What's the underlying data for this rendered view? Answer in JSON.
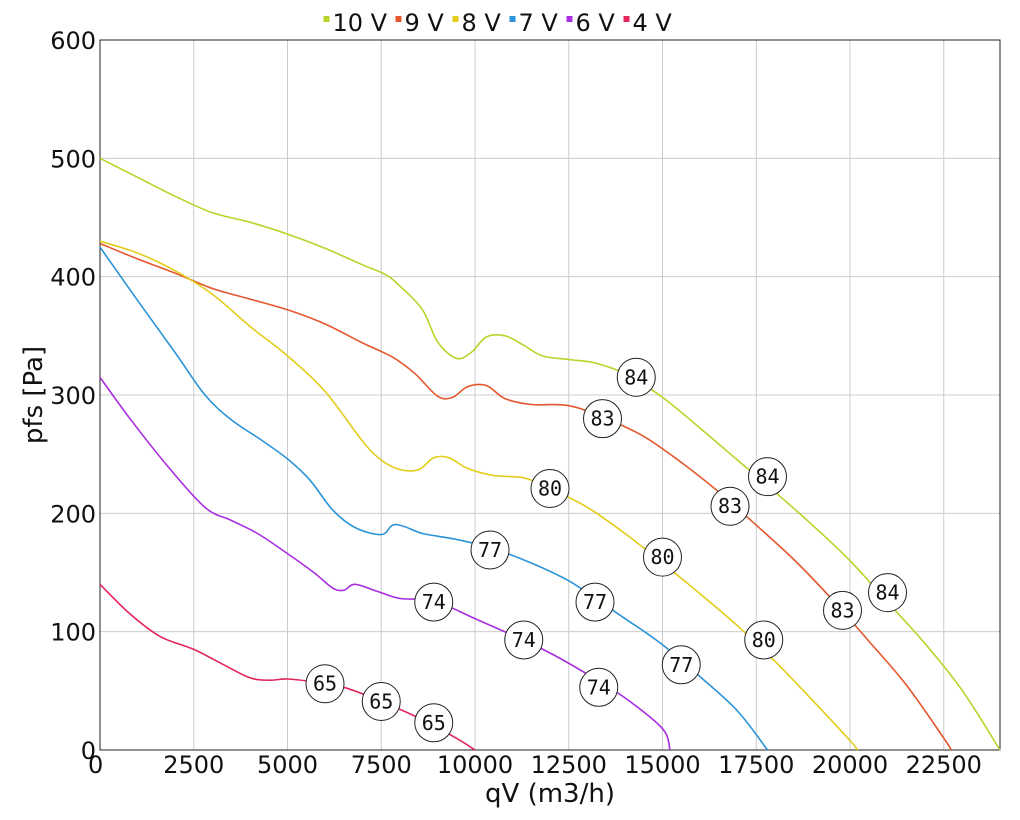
{
  "chart_data": {
    "type": "line",
    "xlabel": "qV (m3/h)",
    "ylabel": "pfs [Pa]",
    "xlim": [
      0,
      24000
    ],
    "ylim": [
      0,
      600
    ],
    "x_ticks": [
      0,
      2500,
      5000,
      7500,
      10000,
      12500,
      15000,
      17500,
      20000,
      22500
    ],
    "y_ticks": [
      0,
      100,
      200,
      300,
      400,
      500,
      600
    ],
    "grid": true,
    "legend_position": "top",
    "series": [
      {
        "name": "10 V",
        "color": "#b6d529",
        "points": [
          [
            0,
            500
          ],
          [
            1000,
            484
          ],
          [
            2000,
            468
          ],
          [
            3000,
            454
          ],
          [
            4000,
            446
          ],
          [
            5000,
            436
          ],
          [
            6000,
            424
          ],
          [
            7000,
            410
          ],
          [
            7600,
            402
          ],
          [
            8000,
            392
          ],
          [
            8600,
            372
          ],
          [
            9000,
            345
          ],
          [
            9500,
            331
          ],
          [
            9900,
            336
          ],
          [
            10300,
            349
          ],
          [
            10800,
            350
          ],
          [
            11300,
            342
          ],
          [
            11800,
            333
          ],
          [
            12500,
            330
          ],
          [
            13200,
            327
          ],
          [
            14000,
            318
          ],
          [
            15000,
            298
          ],
          [
            16000,
            272
          ],
          [
            17000,
            245
          ],
          [
            18000,
            218
          ],
          [
            19000,
            190
          ],
          [
            20000,
            160
          ],
          [
            21000,
            125
          ],
          [
            22000,
            90
          ],
          [
            23000,
            50
          ],
          [
            24000,
            0
          ]
        ],
        "markers": [
          {
            "x": 14300,
            "y": 315,
            "label": "84"
          },
          {
            "x": 17800,
            "y": 231,
            "label": "84"
          },
          {
            "x": 21000,
            "y": 133,
            "label": "84"
          }
        ]
      },
      {
        "name": "9 V",
        "color": "#e4572e",
        "points": [
          [
            0,
            428
          ],
          [
            1000,
            415
          ],
          [
            2000,
            403
          ],
          [
            3000,
            390
          ],
          [
            4000,
            381
          ],
          [
            5000,
            372
          ],
          [
            6000,
            360
          ],
          [
            7000,
            344
          ],
          [
            7800,
            332
          ],
          [
            8400,
            318
          ],
          [
            9000,
            299
          ],
          [
            9400,
            298
          ],
          [
            9800,
            307
          ],
          [
            10300,
            308
          ],
          [
            10800,
            297
          ],
          [
            11500,
            292
          ],
          [
            12500,
            291
          ],
          [
            13500,
            280
          ],
          [
            14500,
            265
          ],
          [
            15500,
            243
          ],
          [
            16500,
            218
          ],
          [
            17500,
            190
          ],
          [
            18500,
            161
          ],
          [
            19500,
            128
          ],
          [
            20500,
            92
          ],
          [
            21500,
            55
          ],
          [
            22500,
            10
          ],
          [
            22700,
            0
          ]
        ],
        "markers": [
          {
            "x": 13400,
            "y": 280,
            "label": "83"
          },
          {
            "x": 16800,
            "y": 206,
            "label": "83"
          },
          {
            "x": 19800,
            "y": 118,
            "label": "83"
          }
        ]
      },
      {
        "name": "8 V",
        "color": "#e3cc1a",
        "points": [
          [
            0,
            430
          ],
          [
            1000,
            420
          ],
          [
            2000,
            405
          ],
          [
            3000,
            385
          ],
          [
            4000,
            358
          ],
          [
            5000,
            333
          ],
          [
            6000,
            303
          ],
          [
            7000,
            261
          ],
          [
            7500,
            245
          ],
          [
            8000,
            237
          ],
          [
            8500,
            237
          ],
          [
            8900,
            247
          ],
          [
            9300,
            247
          ],
          [
            9800,
            238
          ],
          [
            10500,
            232
          ],
          [
            11300,
            230
          ],
          [
            12000,
            221
          ],
          [
            13000,
            205
          ],
          [
            14000,
            183
          ],
          [
            15000,
            158
          ],
          [
            16000,
            132
          ],
          [
            17000,
            105
          ],
          [
            18000,
            75
          ],
          [
            19000,
            42
          ],
          [
            20000,
            8
          ],
          [
            20200,
            0
          ]
        ],
        "markers": [
          {
            "x": 12000,
            "y": 221,
            "label": "80"
          },
          {
            "x": 15000,
            "y": 163,
            "label": "80"
          },
          {
            "x": 17700,
            "y": 93,
            "label": "80"
          }
        ]
      },
      {
        "name": "7 V",
        "color": "#2b93d8",
        "points": [
          [
            0,
            425
          ],
          [
            1000,
            380
          ],
          [
            2000,
            336
          ],
          [
            2800,
            300
          ],
          [
            3500,
            279
          ],
          [
            4300,
            262
          ],
          [
            5000,
            246
          ],
          [
            5600,
            228
          ],
          [
            6200,
            203
          ],
          [
            6800,
            188
          ],
          [
            7500,
            182
          ],
          [
            7800,
            190
          ],
          [
            8100,
            189
          ],
          [
            8600,
            183
          ],
          [
            9500,
            178
          ],
          [
            10400,
            171
          ],
          [
            11500,
            158
          ],
          [
            12500,
            143
          ],
          [
            13300,
            126
          ],
          [
            14000,
            111
          ],
          [
            15000,
            89
          ],
          [
            16000,
            62
          ],
          [
            17000,
            33
          ],
          [
            17800,
            0
          ]
        ],
        "markers": [
          {
            "x": 10400,
            "y": 169,
            "label": "77"
          },
          {
            "x": 13200,
            "y": 125,
            "label": "77"
          },
          {
            "x": 15500,
            "y": 72,
            "label": "77"
          }
        ]
      },
      {
        "name": "6 V",
        "color": "#a82ee0",
        "points": [
          [
            0,
            315
          ],
          [
            800,
            280
          ],
          [
            1800,
            240
          ],
          [
            2800,
            205
          ],
          [
            3500,
            194
          ],
          [
            4200,
            183
          ],
          [
            5000,
            166
          ],
          [
            5700,
            150
          ],
          [
            6200,
            137
          ],
          [
            6500,
            135
          ],
          [
            6800,
            140
          ],
          [
            7400,
            134
          ],
          [
            8000,
            128
          ],
          [
            8900,
            126
          ],
          [
            10000,
            111
          ],
          [
            11000,
            97
          ],
          [
            12000,
            82
          ],
          [
            13000,
            64
          ],
          [
            14000,
            44
          ],
          [
            15000,
            18
          ],
          [
            15200,
            0
          ]
        ],
        "markers": [
          {
            "x": 8900,
            "y": 125,
            "label": "74"
          },
          {
            "x": 11300,
            "y": 93,
            "label": "74"
          },
          {
            "x": 13300,
            "y": 53,
            "label": "74"
          }
        ]
      },
      {
        "name": "4 V",
        "color": "#e0265a",
        "points": [
          [
            0,
            140
          ],
          [
            800,
            115
          ],
          [
            1600,
            96
          ],
          [
            2500,
            85
          ],
          [
            3300,
            72
          ],
          [
            4000,
            61
          ],
          [
            4500,
            59
          ],
          [
            5000,
            60
          ],
          [
            5600,
            58
          ],
          [
            6500,
            53
          ],
          [
            7500,
            41
          ],
          [
            8500,
            27
          ],
          [
            9500,
            10
          ],
          [
            10000,
            0
          ]
        ],
        "markers": [
          {
            "x": 6000,
            "y": 56,
            "label": "65"
          },
          {
            "x": 7500,
            "y": 41,
            "label": "65"
          },
          {
            "x": 8900,
            "y": 23,
            "label": "65"
          }
        ]
      }
    ]
  }
}
